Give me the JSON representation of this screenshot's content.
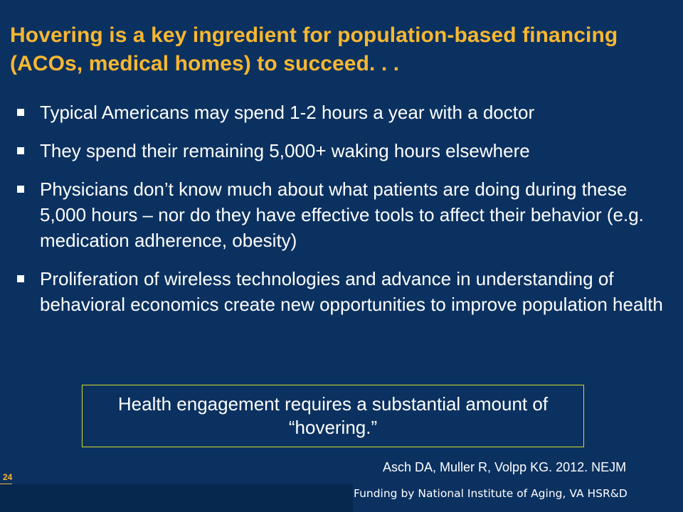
{
  "slide": {
    "title": "Hovering is a key ingredient for population-based financing (ACOs, medical homes) to succeed. . .",
    "bullets": [
      "Typical Americans may spend 1-2 hours a year with a doctor",
      "They spend their remaining 5,000+ waking hours elsewhere",
      "Physicians don’t know much about what patients are doing during these 5,000 hours – nor do they have effective tools to affect their behavior (e.g. medication adherence, obesity)",
      "Proliferation of wireless technologies and advance in understanding of behavioral economics create new opportunities to improve population health"
    ],
    "callout": "Health engagement requires a substantial amount of “hovering.”",
    "citation": "Asch DA, Muller R, Volpp KG. 2012. NEJM",
    "page_number": "24",
    "funding": "Funding by National Institute of Aging, VA HSR&D"
  },
  "colors": {
    "background": "#0b3160",
    "title": "#f7b731",
    "text": "#ffffff",
    "callout_border": "#d5dc2a",
    "footer_bar": "#06284f"
  }
}
